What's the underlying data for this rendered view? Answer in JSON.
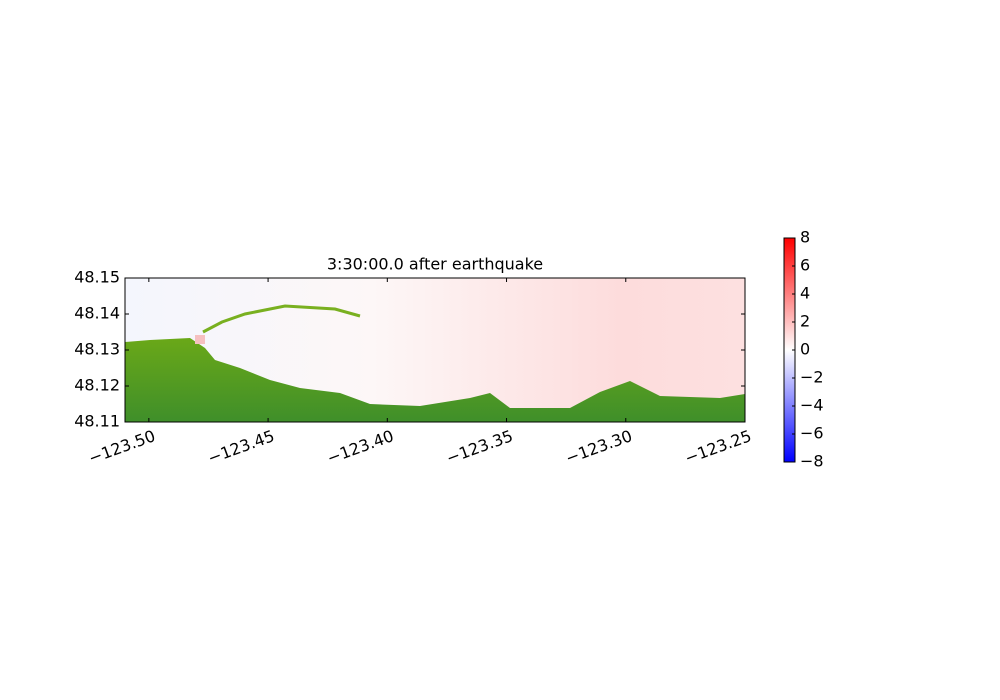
{
  "chart_data": {
    "type": "map",
    "title": "3:30:00.0 after earthquake",
    "xlim": [
      -123.51,
      -123.25
    ],
    "xticks": [
      {
        "value": -123.5,
        "label": "−123.50"
      },
      {
        "value": -123.45,
        "label": "−123.45"
      },
      {
        "value": -123.4,
        "label": "−123.40"
      },
      {
        "value": -123.35,
        "label": "−123.35"
      },
      {
        "value": -123.3,
        "label": "−123.30"
      },
      {
        "value": -123.25,
        "label": "−123.25"
      }
    ],
    "ylim": [
      48.11,
      48.15
    ],
    "yticks": [
      48.11,
      48.12,
      48.13,
      48.14,
      48.15
    ],
    "colorbar": {
      "lim": [
        -8,
        8
      ],
      "colors": [
        "#0000ff",
        "#ffffff",
        "#ff0000"
      ],
      "ticks": [
        {
          "value": -8,
          "label": "−8"
        },
        {
          "value": -6,
          "label": "−6"
        },
        {
          "value": -4,
          "label": "−4"
        },
        {
          "value": -2,
          "label": "−2"
        },
        0,
        2,
        4,
        6,
        8
      ]
    }
  }
}
